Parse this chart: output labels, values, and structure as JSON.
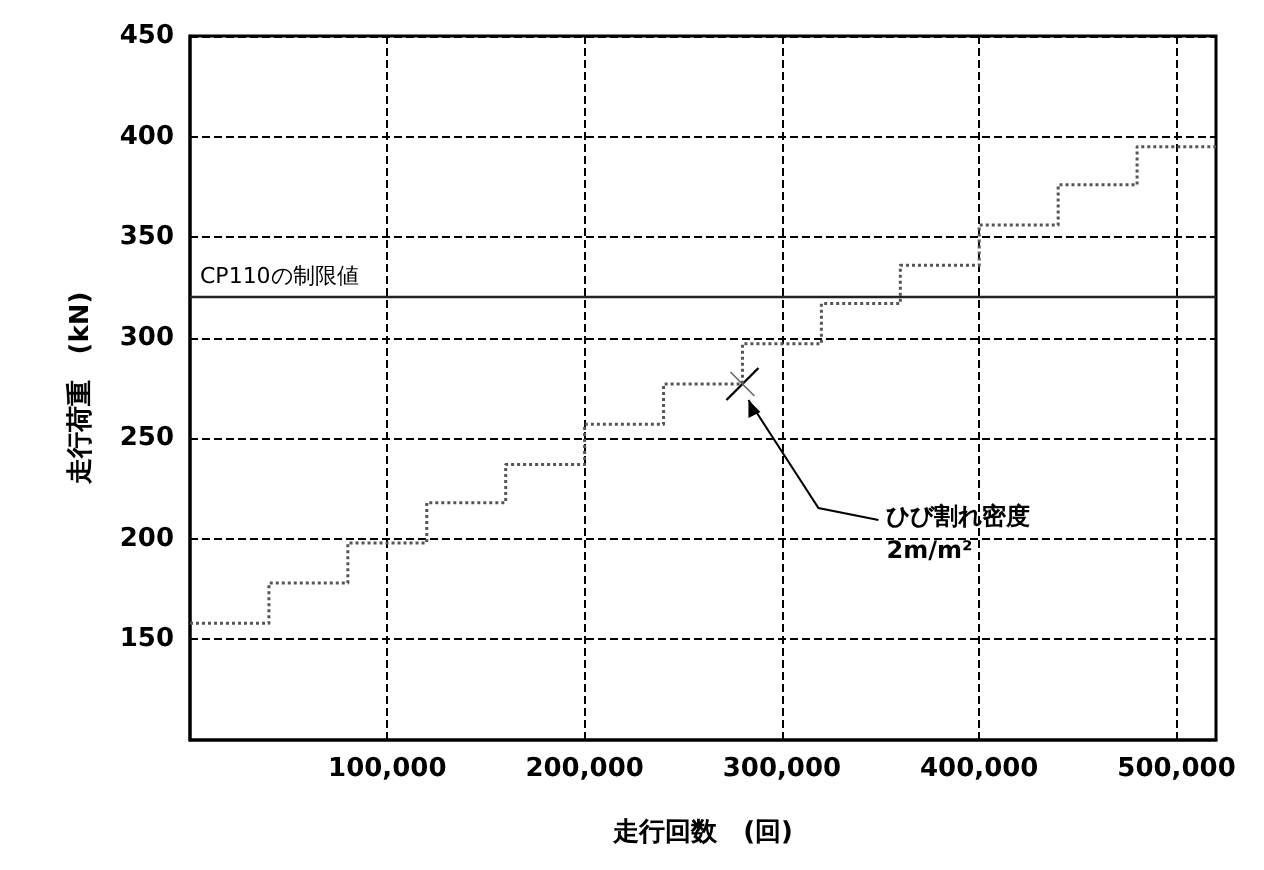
{
  "chart_data": {
    "type": "step",
    "xlabel": "走行回数　(回)",
    "ylabel": "走行荷重　(kN)",
    "x": [
      0,
      40000,
      80000,
      120000,
      160000,
      200000,
      240000,
      280000,
      320000,
      360000,
      400000,
      440000,
      480000,
      520000
    ],
    "series": [
      {
        "color": "#555555",
        "values": [
          158,
          178,
          198,
          218,
          237,
          257,
          277,
          297,
          317,
          336,
          356,
          376,
          395,
          395
        ]
      }
    ],
    "xlim": [
      0,
      520000
    ],
    "ylim": [
      100,
      450
    ],
    "xticks": [
      {
        "value": 100000,
        "label": "100,000"
      },
      {
        "value": 200000,
        "label": "200,000"
      },
      {
        "value": 300000,
        "label": "300,000"
      },
      {
        "value": 400000,
        "label": "400,000"
      },
      {
        "value": 500000,
        "label": "500,000"
      }
    ],
    "yticks": [
      150,
      200,
      250,
      300,
      350,
      400,
      450
    ],
    "ref_lines": [
      {
        "axis": "y",
        "value": 320,
        "label": "CP110の制限値",
        "color": "#222222",
        "line_style": "solid"
      }
    ],
    "annotations": [
      {
        "text": "ひび割れ密度\n2m/m²",
        "x": 280000,
        "y": 277
      }
    ],
    "grid": true,
    "marker": "none",
    "line_style": "dotted"
  }
}
